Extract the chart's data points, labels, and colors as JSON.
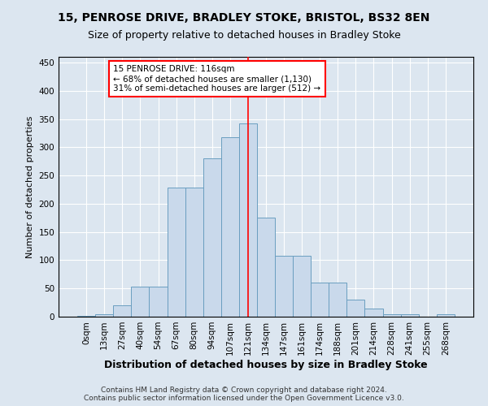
{
  "title1": "15, PENROSE DRIVE, BRADLEY STOKE, BRISTOL, BS32 8EN",
  "title2": "Size of property relative to detached houses in Bradley Stoke",
  "xlabel": "Distribution of detached houses by size in Bradley Stoke",
  "ylabel": "Number of detached properties",
  "footnote": "Contains HM Land Registry data © Crown copyright and database right 2024.\nContains public sector information licensed under the Open Government Licence v3.0.",
  "bar_labels": [
    "0sqm",
    "13sqm",
    "27sqm",
    "40sqm",
    "54sqm",
    "67sqm",
    "80sqm",
    "94sqm",
    "107sqm",
    "121sqm",
    "134sqm",
    "147sqm",
    "161sqm",
    "174sqm",
    "188sqm",
    "201sqm",
    "214sqm",
    "228sqm",
    "241sqm",
    "255sqm",
    "268sqm"
  ],
  "bar_values": [
    1,
    5,
    20,
    53,
    53,
    228,
    228,
    280,
    317,
    342,
    175,
    108,
    108,
    60,
    60,
    30,
    15,
    5,
    5,
    0,
    5
  ],
  "bar_color": "#c9d9eb",
  "bar_edge_color": "#6a9ec0",
  "vline_color": "red",
  "annotation_title": "15 PENROSE DRIVE: 116sqm",
  "annotation_line1": "← 68% of detached houses are smaller (1,130)",
  "annotation_line2": "31% of semi-detached houses are larger (512) →",
  "annotation_box_color": "white",
  "annotation_box_edge": "red",
  "ylim": [
    0,
    460
  ],
  "yticks": [
    0,
    50,
    100,
    150,
    200,
    250,
    300,
    350,
    400,
    450
  ],
  "background_color": "#dce6f0",
  "plot_background": "#dce6f0",
  "title1_fontsize": 10,
  "title2_fontsize": 9,
  "xlabel_fontsize": 9,
  "ylabel_fontsize": 8,
  "tick_fontsize": 7.5,
  "annotation_fontsize": 7.5,
  "footnote_fontsize": 6.5
}
